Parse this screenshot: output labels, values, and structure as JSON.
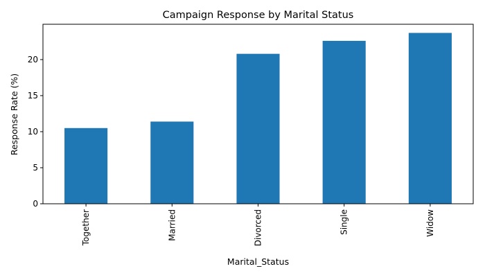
{
  "chart_data": {
    "type": "bar",
    "title": "Campaign Response by Marital Status",
    "xlabel": "Marital_Status",
    "ylabel": "Response Rate (%)",
    "categories": [
      "Together",
      "Married",
      "Divorced",
      "Single",
      "Widow"
    ],
    "values": [
      10.5,
      11.4,
      20.8,
      22.6,
      23.7
    ],
    "ylim": [
      0,
      24.9
    ],
    "yticks": [
      0,
      5,
      10,
      15,
      20
    ],
    "grid": false,
    "legend": "none",
    "bar_color": "#1f77b4"
  }
}
